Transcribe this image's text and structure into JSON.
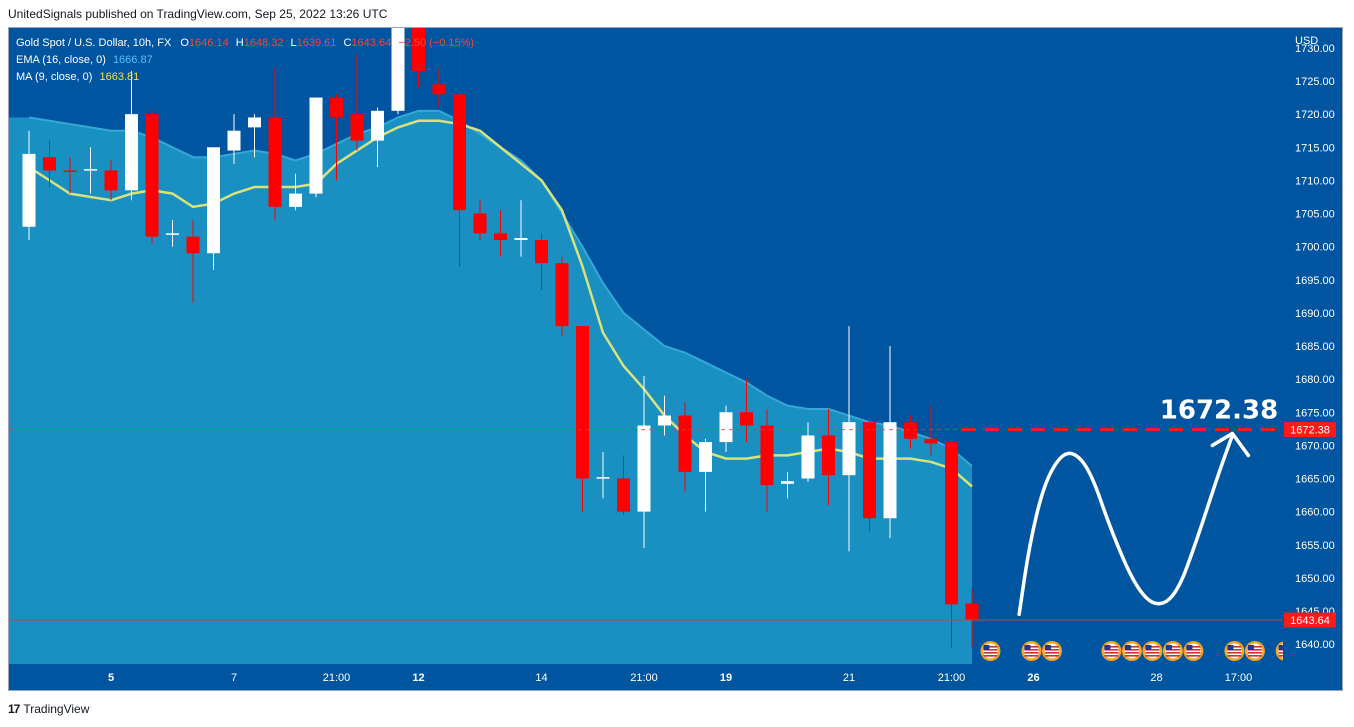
{
  "header": {
    "published_by": "UnitedSignals published on TradingView.com, Sep 25, 2022 13:26 UTC"
  },
  "legend": {
    "symbol": "Gold Spot / U.S. Dollar, 10h, FX",
    "o_label": "O",
    "o_value": "1646.14",
    "h_label": "H",
    "h_value": "1648.32",
    "l_label": "L",
    "l_value": "1639.61",
    "c_label": "C",
    "c_value": "1643.64",
    "change": "−2.50 (−0.15%)",
    "ema_label": "EMA (16, close, 0)",
    "ema_value": "1666.87",
    "ma_label": "MA (9, close, 0)",
    "ma_value": "1663.81"
  },
  "currency": "USD",
  "annotation": {
    "target_text": "1672.38"
  },
  "price_tags": {
    "target": "1672.38",
    "last": "1643.64"
  },
  "footer": {
    "brand": "TradingView",
    "logo_text": "17"
  },
  "colors": {
    "background": "#0055a0",
    "ema_fill": "#1a8fc2",
    "ema_line": "#34a9d6",
    "ma_line": "#d8e37a",
    "ma_line_top": "#f5e04a",
    "bull": "#ffffff",
    "bear": "#ff0000",
    "target_line": "#ff1a1a",
    "last_price_tag": "#ff1a1a"
  },
  "chart_data": {
    "type": "candlestick",
    "ylim": [
      1637,
      1733
    ],
    "yticks": [
      1640,
      1645,
      1650,
      1655,
      1660,
      1665,
      1670,
      1675,
      1680,
      1685,
      1690,
      1695,
      1700,
      1705,
      1710,
      1715,
      1720,
      1725,
      1730
    ],
    "x_labels": [
      {
        "i": 4,
        "label": "5",
        "bold": true
      },
      {
        "i": 10,
        "label": "7",
        "bold": false
      },
      {
        "i": 15,
        "label": "21:00",
        "bold": false
      },
      {
        "i": 19,
        "label": "12",
        "bold": true
      },
      {
        "i": 25,
        "label": "14",
        "bold": false
      },
      {
        "i": 30,
        "label": "21:00",
        "bold": false
      },
      {
        "i": 34,
        "label": "19",
        "bold": true
      },
      {
        "i": 40,
        "label": "21",
        "bold": false
      },
      {
        "i": 45,
        "label": "21:00",
        "bold": false
      },
      {
        "i": 49,
        "label": "26",
        "bold": true
      },
      {
        "i": 55,
        "label": "28",
        "bold": false
      },
      {
        "i": 59,
        "label": "17:00",
        "bold": false
      }
    ],
    "candles": [
      {
        "o": 1703.0,
        "h": 1717.5,
        "l": 1701.0,
        "c": 1714.0
      },
      {
        "o": 1713.5,
        "h": 1716.0,
        "l": 1709.0,
        "c": 1711.5
      },
      {
        "o": 1711.5,
        "h": 1713.5,
        "l": 1708.0,
        "c": 1711.3
      },
      {
        "o": 1711.5,
        "h": 1715.0,
        "l": 1708.0,
        "c": 1711.7
      },
      {
        "o": 1711.5,
        "h": 1713.0,
        "l": 1707.0,
        "c": 1708.5
      },
      {
        "o": 1708.5,
        "h": 1726.5,
        "l": 1707.0,
        "c": 1720.0
      },
      {
        "o": 1720.0,
        "h": 1720.5,
        "l": 1700.5,
        "c": 1701.5
      },
      {
        "o": 1701.8,
        "h": 1704.0,
        "l": 1700.0,
        "c": 1702.0
      },
      {
        "o": 1701.5,
        "h": 1704.0,
        "l": 1691.5,
        "c": 1699.0
      },
      {
        "o": 1699.0,
        "h": 1714.5,
        "l": 1696.5,
        "c": 1715.0
      },
      {
        "o": 1714.5,
        "h": 1720.0,
        "l": 1712.5,
        "c": 1717.5
      },
      {
        "o": 1718.0,
        "h": 1720.0,
        "l": 1713.5,
        "c": 1719.5
      },
      {
        "o": 1719.5,
        "h": 1727.0,
        "l": 1704.0,
        "c": 1706.0
      },
      {
        "o": 1706.0,
        "h": 1711.0,
        "l": 1705.5,
        "c": 1708.0
      },
      {
        "o": 1708.0,
        "h": 1722.5,
        "l": 1707.5,
        "c": 1722.5
      },
      {
        "o": 1722.5,
        "h": 1723.0,
        "l": 1710.0,
        "c": 1719.5
      },
      {
        "o": 1720.0,
        "h": 1729.0,
        "l": 1714.5,
        "c": 1716.0
      },
      {
        "o": 1716.0,
        "h": 1721.0,
        "l": 1712.0,
        "c": 1720.5
      },
      {
        "o": 1720.5,
        "h": 1733.0,
        "l": 1720.0,
        "c": 1733.0
      },
      {
        "o": 1733.0,
        "h": 1733.0,
        "l": 1724.0,
        "c": 1726.5
      },
      {
        "o": 1724.5,
        "h": 1727.0,
        "l": 1721.0,
        "c": 1723.0
      },
      {
        "o": 1723.0,
        "h": 1731.5,
        "l": 1697.0,
        "c": 1705.5
      },
      {
        "o": 1705.0,
        "h": 1707.0,
        "l": 1701.0,
        "c": 1702.0
      },
      {
        "o": 1702.0,
        "h": 1705.5,
        "l": 1698.5,
        "c": 1701.0
      },
      {
        "o": 1701.0,
        "h": 1707.0,
        "l": 1698.5,
        "c": 1701.3
      },
      {
        "o": 1701.0,
        "h": 1702.0,
        "l": 1693.5,
        "c": 1697.5
      },
      {
        "o": 1697.5,
        "h": 1698.5,
        "l": 1686.5,
        "c": 1688.0
      },
      {
        "o": 1688.0,
        "h": 1688.0,
        "l": 1660.0,
        "c": 1665.0
      },
      {
        "o": 1665.0,
        "h": 1669.0,
        "l": 1662.0,
        "c": 1665.2
      },
      {
        "o": 1665.0,
        "h": 1668.5,
        "l": 1659.5,
        "c": 1660.0
      },
      {
        "o": 1660.0,
        "h": 1680.5,
        "l": 1654.5,
        "c": 1673.0
      },
      {
        "o": 1673.0,
        "h": 1677.5,
        "l": 1671.5,
        "c": 1674.5
      },
      {
        "o": 1674.5,
        "h": 1676.5,
        "l": 1663.0,
        "c": 1666.0
      },
      {
        "o": 1666.0,
        "h": 1671.0,
        "l": 1660.0,
        "c": 1670.5
      },
      {
        "o": 1670.5,
        "h": 1676.0,
        "l": 1669.0,
        "c": 1675.0
      },
      {
        "o": 1675.0,
        "h": 1680.0,
        "l": 1670.5,
        "c": 1673.0
      },
      {
        "o": 1673.0,
        "h": 1675.5,
        "l": 1660.0,
        "c": 1664.0
      },
      {
        "o": 1664.2,
        "h": 1666.0,
        "l": 1662.0,
        "c": 1664.6
      },
      {
        "o": 1665.0,
        "h": 1673.5,
        "l": 1664.5,
        "c": 1671.5
      },
      {
        "o": 1671.5,
        "h": 1675.5,
        "l": 1661.0,
        "c": 1665.5
      },
      {
        "o": 1665.5,
        "h": 1688.0,
        "l": 1654.0,
        "c": 1673.5
      },
      {
        "o": 1673.5,
        "h": 1675.0,
        "l": 1657.0,
        "c": 1659.0
      },
      {
        "o": 1659.0,
        "h": 1685.0,
        "l": 1656.0,
        "c": 1673.5
      },
      {
        "o": 1673.5,
        "h": 1674.5,
        "l": 1669.5,
        "c": 1671.0
      },
      {
        "o": 1671.0,
        "h": 1676.0,
        "l": 1668.5,
        "c": 1670.3
      },
      {
        "o": 1670.5,
        "h": 1671.0,
        "l": 1639.5,
        "c": 1646.0
      },
      {
        "o": 1646.14,
        "h": 1648.32,
        "l": 1639.61,
        "c": 1643.64
      }
    ],
    "ema": [
      1719.5,
      1719.0,
      1718.5,
      1718.0,
      1717.5,
      1717.5,
      1716.5,
      1715.0,
      1713.5,
      1713.5,
      1714.0,
      1714.5,
      1714.0,
      1713.0,
      1714.0,
      1715.5,
      1717.0,
      1718.0,
      1719.5,
      1720.5,
      1720.5,
      1719.0,
      1717.0,
      1715.0,
      1713.0,
      1710.0,
      1705.0,
      1700.0,
      1694.5,
      1690.0,
      1687.5,
      1685.0,
      1684.0,
      1682.5,
      1681.0,
      1679.5,
      1677.5,
      1676.0,
      1675.5,
      1675.5,
      1674.5,
      1673.5,
      1673.0,
      1672.0,
      1671.0,
      1669.5,
      1666.87
    ],
    "ma": [
      1712.0,
      1710.0,
      1708.0,
      1707.5,
      1707.0,
      1708.0,
      1708.5,
      1708.0,
      1706.0,
      1706.5,
      1708.0,
      1709.0,
      1709.0,
      1709.0,
      1709.5,
      1712.5,
      1714.5,
      1716.5,
      1718.0,
      1719.0,
      1719.0,
      1718.5,
      1717.5,
      1715.0,
      1712.5,
      1710.0,
      1705.5,
      1697.0,
      1687.0,
      1682.0,
      1678.5,
      1674.5,
      1671.5,
      1669.0,
      1668.0,
      1668.0,
      1668.5,
      1668.5,
      1669.0,
      1669.5,
      1669.0,
      1668.0,
      1668.0,
      1668.0,
      1667.5,
      1666.5,
      1663.81
    ],
    "target_price": 1672.38,
    "last_price": 1643.64,
    "projection": [
      [
        48.3,
        1644.5
      ],
      [
        48.8,
        1655
      ],
      [
        49.5,
        1664
      ],
      [
        50.3,
        1668.5
      ],
      [
        51.0,
        1669
      ],
      [
        51.8,
        1666
      ],
      [
        52.8,
        1657
      ],
      [
        54.0,
        1648.5
      ],
      [
        55.0,
        1645.5
      ],
      [
        56.0,
        1647.5
      ],
      [
        57.0,
        1656
      ],
      [
        58.0,
        1665.5
      ],
      [
        58.7,
        1671.5
      ]
    ],
    "events": [
      46.9,
      48.9,
      49.9,
      52.8,
      53.8,
      54.8,
      55.8,
      56.8,
      58.8,
      59.8,
      61.3,
      62.3
    ]
  }
}
